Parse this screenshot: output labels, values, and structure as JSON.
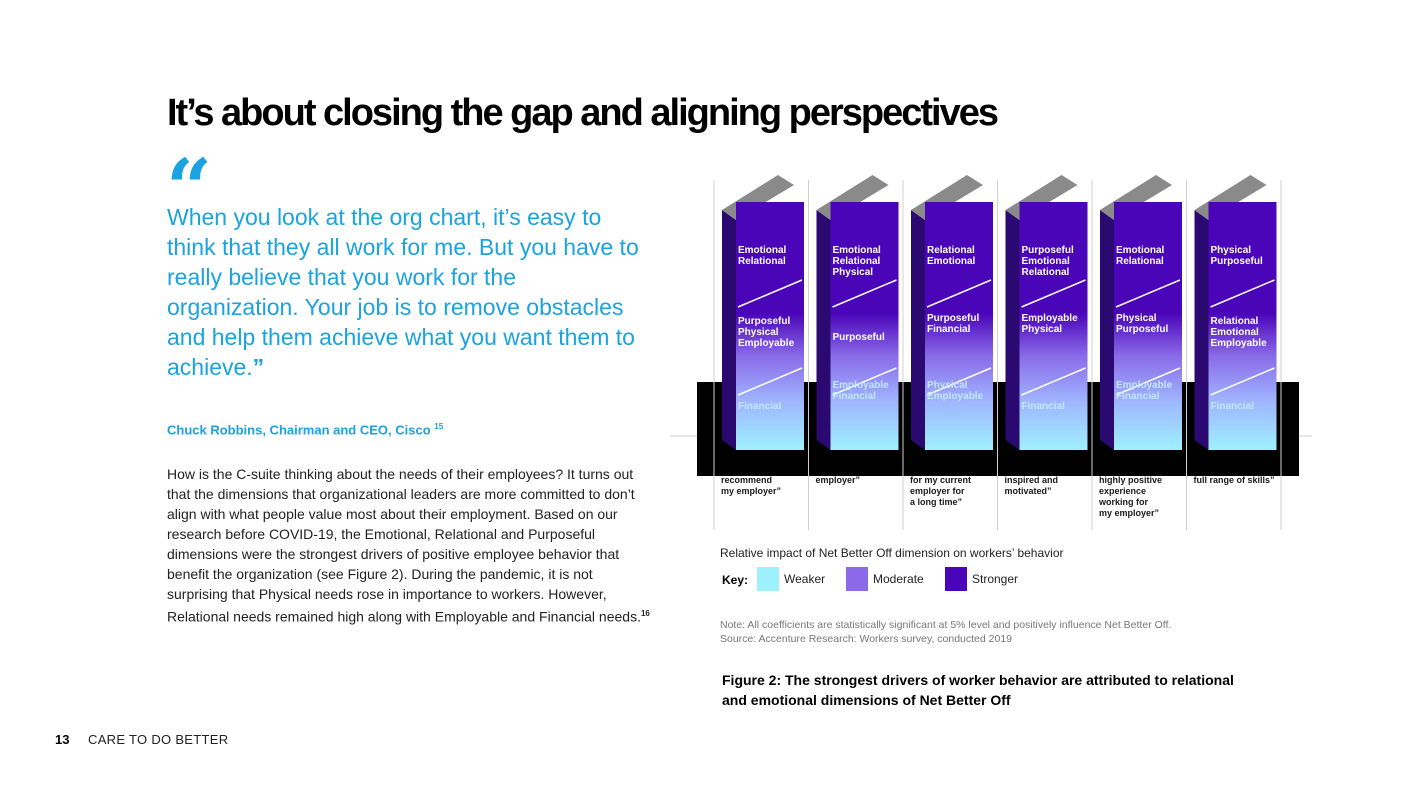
{
  "page": {
    "title": "It’s about closing the gap and aligning perspectives",
    "quote_mark": "“",
    "quote": "When you look at the org chart, it’s easy to think that they all work for me. But you have to really believe that you work for the organization. Your job is to remove obstacles and help them achieve what you want them to achieve.",
    "quote_close": "”",
    "attribution": "Chuck Robbins, Chairman and CEO, Cisco",
    "attribution_ref": "15",
    "body": "How is the C-suite thinking about the needs of their employees? It turns out that the dimensions that organizational leaders are more committed to don’t align with what people value most about their employment. Based on our research before COVID-19, the Emotional, Relational and Purposeful dimensions were the strongest drivers of positive employee behavior that benefit the organization (see Figure 2). During the pandemic, it is not surprising that Physical needs rose in importance to workers. However, Relational needs remained high along with Employable and Financial needs.",
    "body_ref": "16",
    "footer_page": "13",
    "footer_text": "CARE TO DO BETTER"
  },
  "figure": {
    "relative_label": "Relative impact of Net Better Off dimension on workers’ behavior",
    "key_label": "Key:",
    "key": [
      {
        "label": "Weaker",
        "color": "#9ff0ff"
      },
      {
        "label": "Moderate",
        "color": "#8a6ae8"
      },
      {
        "label": "Stronger",
        "color": "#4a05b8"
      }
    ],
    "note": "Note: All coefficients are statistically significant at 5% level and positively influence Net Better Off.",
    "source": "Source: Accenture Research: Workers survey, conducted 2019",
    "caption": "Figure 2: The strongest drivers of worker behavior are attributed to relational and emotional dimensions of Net Better Off"
  },
  "chart_data": {
    "type": "table",
    "columns": [
      {
        "stronger": [
          "Emotional",
          "Relational"
        ],
        "moderate": [
          "Purposeful",
          "Physical",
          "Employable"
        ],
        "weaker": [
          "Financial"
        ],
        "caption": [
          "recommend",
          "my employer”"
        ]
      },
      {
        "stronger": [
          "Emotional",
          "Relational",
          "Physical"
        ],
        "moderate": [
          "Purposeful"
        ],
        "weaker": [
          "Employable",
          "Financial"
        ],
        "caption": [
          "employer”"
        ]
      },
      {
        "stronger": [
          "Relational",
          "Emotional"
        ],
        "moderate": [
          "Purposeful",
          "Financial"
        ],
        "weaker": [
          "Physical",
          "Employable"
        ],
        "caption": [
          "for my current",
          "employer for",
          "a long time”"
        ]
      },
      {
        "stronger": [
          "Purposeful",
          "Emotional",
          "Relational"
        ],
        "moderate": [
          "Employable",
          "Physical"
        ],
        "weaker": [
          "Financial"
        ],
        "caption": [
          "inspired and",
          "motivated”"
        ]
      },
      {
        "stronger": [
          "Emotional",
          "Relational"
        ],
        "moderate": [
          "Physical",
          "Purposeful"
        ],
        "weaker": [
          "Employable",
          "Financial"
        ],
        "caption": [
          "highly positive",
          "experience",
          "working for",
          "my employer”"
        ]
      },
      {
        "stronger": [
          "Physical",
          "Purposeful"
        ],
        "moderate": [
          "Relational",
          "Emotional",
          "Employable"
        ],
        "weaker": [
          "Financial"
        ],
        "caption": [
          "full range of skills”"
        ]
      }
    ]
  }
}
